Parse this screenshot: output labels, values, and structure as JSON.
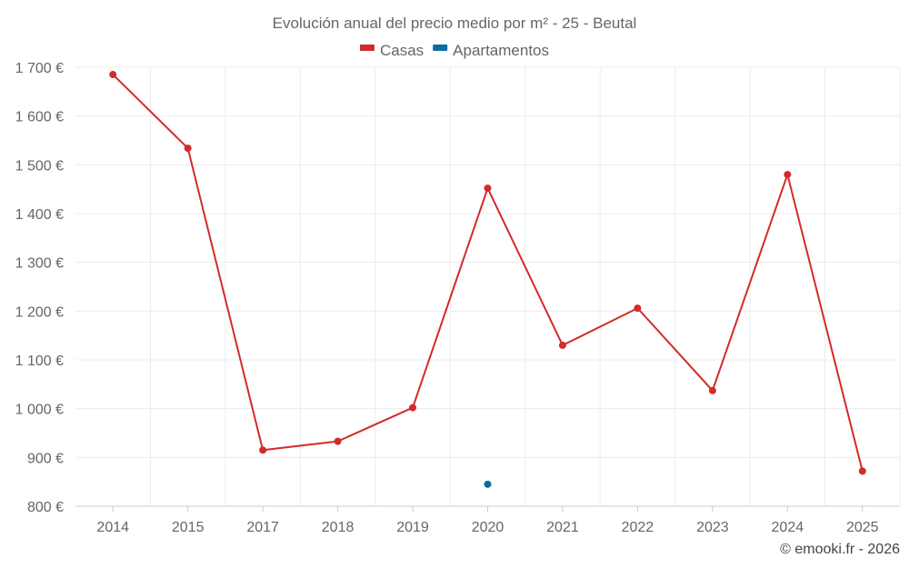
{
  "chart_data": {
    "type": "line",
    "title": "Evolución anual del precio medio por m² - 25 - Beutal",
    "categories": [
      "2014",
      "2015",
      "2017",
      "2018",
      "2019",
      "2020",
      "2021",
      "2022",
      "2023",
      "2024",
      "2025"
    ],
    "series": [
      {
        "name": "Casas",
        "color": "#d32a2a",
        "values": [
          1685,
          1534,
          915,
          933,
          1002,
          1452,
          1130,
          1206,
          1037,
          1480,
          872
        ]
      },
      {
        "name": "Apartamentos",
        "color": "#0e6aa3",
        "values": [
          null,
          null,
          null,
          null,
          null,
          845,
          null,
          null,
          null,
          null,
          null
        ]
      }
    ],
    "y_ticks": [
      800,
      900,
      1000,
      1100,
      1200,
      1300,
      1400,
      1500,
      1600,
      1700
    ],
    "y_tick_labels": [
      "800 €",
      "900 €",
      "1 000 €",
      "1 100 €",
      "1 200 €",
      "1 300 €",
      "1 400 €",
      "1 500 €",
      "1 600 €",
      "1 700 €"
    ],
    "ylim": [
      800,
      1700
    ],
    "xlabel": "",
    "ylabel": "",
    "grid": true,
    "legend_position": "top-center"
  },
  "credit": "© emooki.fr - 2026"
}
